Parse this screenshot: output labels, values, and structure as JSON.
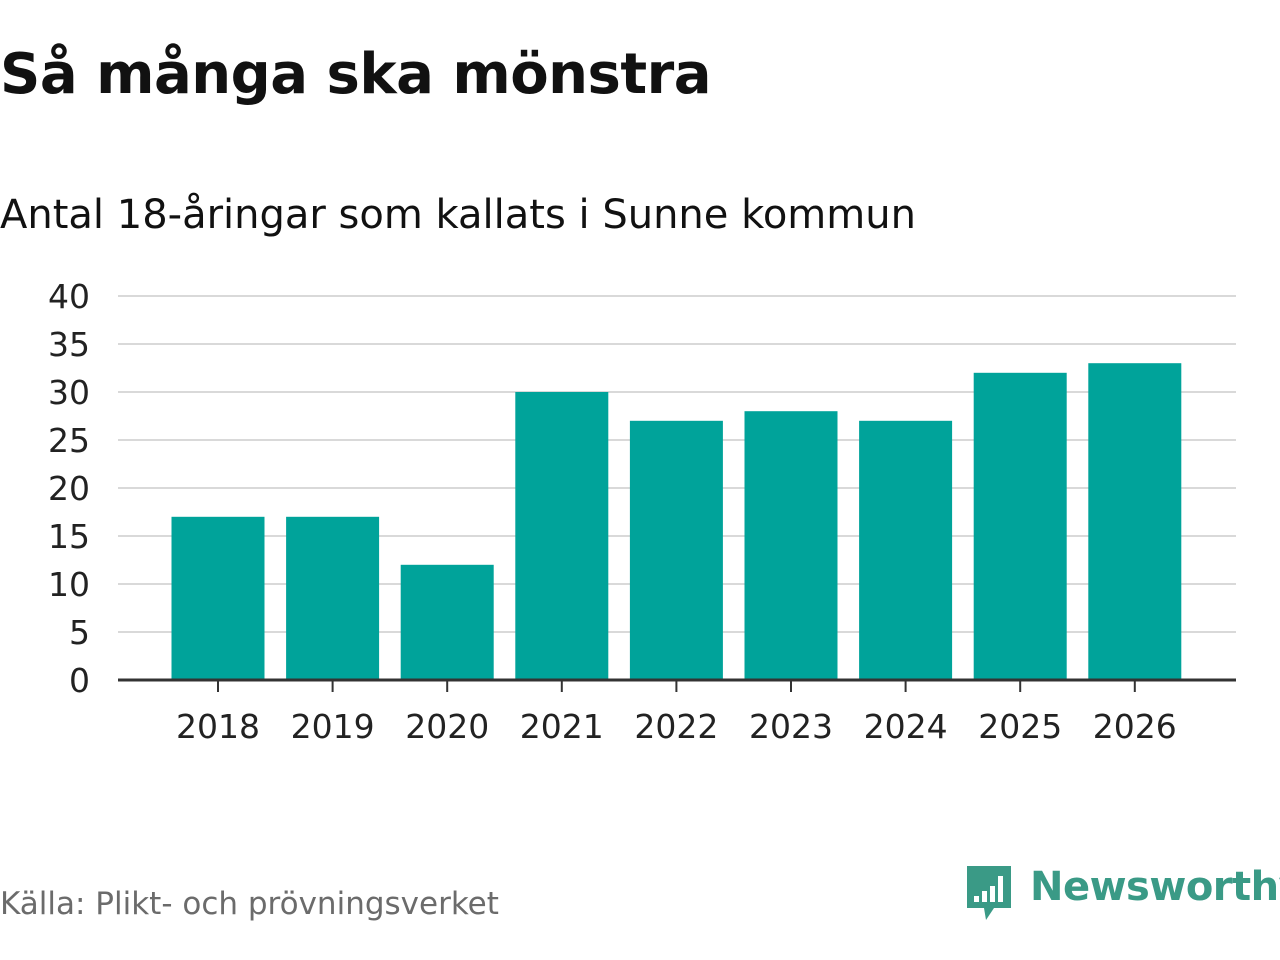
{
  "title": "Så många ska mönstra",
  "subtitle": "Antal 18-åringar som kallats i Sunne kommun",
  "source": "Källa: Plikt- och prövningsverket",
  "brand": {
    "name": "Newsworthy",
    "icon": "chat-bubble-bar-chart-icon",
    "color": "#3a9a86"
  },
  "colors": {
    "bar": "#00a39a",
    "grid": "#d9d9d9",
    "axis": "#333333",
    "tick_text": "#222222"
  },
  "chart_data": {
    "type": "bar",
    "categories": [
      "2018",
      "2019",
      "2020",
      "2021",
      "2022",
      "2023",
      "2024",
      "2025",
      "2026"
    ],
    "values": [
      17,
      17,
      12,
      30,
      27,
      28,
      27,
      32,
      33
    ],
    "ylim": [
      0,
      40
    ],
    "yticks": [
      0,
      5,
      10,
      15,
      20,
      25,
      30,
      35,
      40
    ],
    "grid": true,
    "legend": "none"
  }
}
